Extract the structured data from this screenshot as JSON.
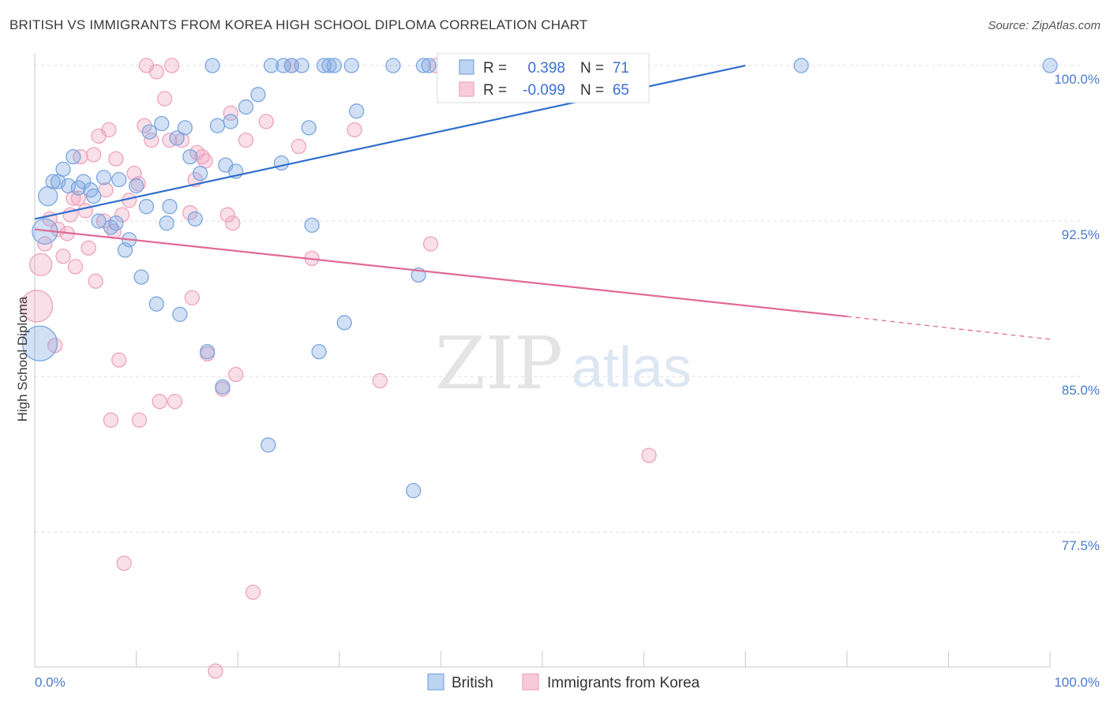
{
  "title": "BRITISH VS IMMIGRANTS FROM KOREA HIGH SCHOOL DIPLOMA CORRELATION CHART",
  "source": "Source: ZipAtlas.com",
  "watermark": {
    "zip": "ZIP",
    "atlas": "atlas"
  },
  "colors": {
    "british": "#7ba6e0",
    "british_line": "#2f6fcc",
    "korea": "#eea3bd",
    "korea_line": "#e06a96",
    "tick": "#4a7ccc",
    "grid": "#dddddd"
  },
  "chart_data": {
    "type": "scatter",
    "ylabel": "High School Diploma",
    "xlim": [
      0,
      100
    ],
    "ylim": [
      71.0,
      100.8
    ],
    "x_tick_labels": [
      {
        "value": 0,
        "label": "0.0%"
      },
      {
        "value": 100,
        "label": "100.0%"
      }
    ],
    "y_ticks": [
      {
        "value": 100.0,
        "label": "100.0%"
      },
      {
        "value": 92.5,
        "label": "92.5%"
      },
      {
        "value": 85.0,
        "label": "85.0%"
      },
      {
        "value": 77.5,
        "label": "77.5%"
      }
    ],
    "legend": [
      {
        "series": "British",
        "r_label": "R =",
        "r": "0.398",
        "n_label": "N =",
        "n": "71"
      },
      {
        "series": "Immigrants from Korea",
        "r_label": "R =",
        "r": "-0.099",
        "n_label": "N =",
        "n": "65"
      }
    ],
    "series": [
      {
        "name": "British",
        "trend": {
          "x": [
            0,
            70
          ],
          "y": [
            92.6,
            100.0
          ]
        },
        "points": [
          [
            0.5,
            86.6,
            22
          ],
          [
            1.0,
            92.0,
            16
          ],
          [
            1.3,
            93.7,
            12
          ],
          [
            1.8,
            94.4,
            9
          ],
          [
            2.3,
            94.4,
            9
          ],
          [
            2.8,
            95.0,
            9
          ],
          [
            3.3,
            94.2,
            9
          ],
          [
            3.8,
            95.6,
            9
          ],
          [
            4.3,
            94.1,
            9
          ],
          [
            4.8,
            94.4,
            9
          ],
          [
            5.5,
            94.0,
            9
          ],
          [
            5.8,
            93.7,
            9
          ],
          [
            6.3,
            92.5,
            9
          ],
          [
            6.8,
            94.6,
            9
          ],
          [
            7.5,
            92.2,
            9
          ],
          [
            8.0,
            92.4,
            9
          ],
          [
            8.3,
            94.5,
            9
          ],
          [
            8.9,
            91.1,
            9
          ],
          [
            9.3,
            91.6,
            9
          ],
          [
            10.0,
            94.2,
            9
          ],
          [
            10.5,
            89.8,
            9
          ],
          [
            11.0,
            93.2,
            9
          ],
          [
            11.3,
            96.8,
            9
          ],
          [
            12.0,
            88.5,
            9
          ],
          [
            12.5,
            97.2,
            9
          ],
          [
            13.0,
            92.4,
            9
          ],
          [
            13.3,
            93.2,
            9
          ],
          [
            14.0,
            96.5,
            9
          ],
          [
            14.3,
            88.0,
            9
          ],
          [
            14.8,
            97.0,
            9
          ],
          [
            15.3,
            95.6,
            9
          ],
          [
            15.8,
            92.6,
            9
          ],
          [
            16.3,
            94.8,
            9
          ],
          [
            17.0,
            86.2,
            9
          ],
          [
            17.5,
            100.0,
            9
          ],
          [
            18.0,
            97.1,
            9
          ],
          [
            18.5,
            84.5,
            9
          ],
          [
            18.8,
            95.2,
            9
          ],
          [
            19.3,
            97.3,
            9
          ],
          [
            19.8,
            94.9,
            9
          ],
          [
            20.8,
            98.0,
            9
          ],
          [
            22.0,
            98.6,
            9
          ],
          [
            23.0,
            81.7,
            9
          ],
          [
            23.3,
            100.0,
            9
          ],
          [
            24.3,
            95.3,
            9
          ],
          [
            24.5,
            100.0,
            9
          ],
          [
            25.3,
            100.0,
            9
          ],
          [
            26.3,
            100.0,
            9
          ],
          [
            27.0,
            97.0,
            9
          ],
          [
            27.3,
            92.3,
            9
          ],
          [
            28.0,
            86.2,
            9
          ],
          [
            28.5,
            100.0,
            9
          ],
          [
            29.0,
            100.0,
            9
          ],
          [
            29.5,
            100.0,
            9
          ],
          [
            30.5,
            87.6,
            9
          ],
          [
            31.2,
            100.0,
            9
          ],
          [
            31.7,
            97.8,
            9
          ],
          [
            35.3,
            100.0,
            9
          ],
          [
            37.3,
            79.5,
            9
          ],
          [
            37.8,
            89.9,
            9
          ],
          [
            38.3,
            100.0,
            9
          ],
          [
            38.8,
            100.0,
            9
          ],
          [
            41.5,
            100.0,
            9
          ],
          [
            43.3,
            100.0,
            9
          ],
          [
            45.3,
            100.0,
            9
          ],
          [
            47.3,
            100.0,
            9
          ],
          [
            52.0,
            100.0,
            9
          ],
          [
            56.3,
            100.0,
            9
          ],
          [
            75.5,
            100.0,
            9
          ],
          [
            100.0,
            100.0,
            9
          ],
          [
            48.0,
            100.0,
            9
          ]
        ]
      },
      {
        "name": "Immigrants from Korea",
        "trend": {
          "x": [
            0,
            80
          ],
          "y": [
            92.1,
            87.9
          ]
        },
        "trend_dashed": {
          "x": [
            80,
            100
          ],
          "y": [
            87.9,
            86.8
          ]
        },
        "points": [
          [
            0.2,
            88.4,
            20
          ],
          [
            0.6,
            90.4,
            14
          ],
          [
            1.0,
            91.4,
            9
          ],
          [
            1.5,
            92.6,
            9
          ],
          [
            2.0,
            86.5,
            9
          ],
          [
            2.3,
            92.1,
            9
          ],
          [
            2.8,
            90.8,
            9
          ],
          [
            3.2,
            91.9,
            9
          ],
          [
            3.5,
            92.8,
            9
          ],
          [
            3.8,
            93.6,
            9
          ],
          [
            4.0,
            90.3,
            9
          ],
          [
            4.3,
            93.6,
            9
          ],
          [
            4.5,
            95.6,
            9
          ],
          [
            5.3,
            91.2,
            9
          ],
          [
            5.8,
            95.7,
            9
          ],
          [
            6.0,
            89.6,
            9
          ],
          [
            6.3,
            96.6,
            9
          ],
          [
            6.8,
            92.5,
            9
          ],
          [
            7.0,
            94.0,
            9
          ],
          [
            7.3,
            96.9,
            9
          ],
          [
            7.5,
            82.9,
            9
          ],
          [
            7.8,
            92.0,
            9
          ],
          [
            8.0,
            95.5,
            9
          ],
          [
            8.3,
            85.8,
            9
          ],
          [
            8.6,
            92.8,
            9
          ],
          [
            8.8,
            76.0,
            9
          ],
          [
            9.3,
            93.5,
            9
          ],
          [
            9.8,
            94.8,
            9
          ],
          [
            10.2,
            94.3,
            9
          ],
          [
            10.3,
            82.9,
            9
          ],
          [
            11.0,
            100.0,
            9
          ],
          [
            11.5,
            96.4,
            9
          ],
          [
            12.0,
            99.7,
            9
          ],
          [
            12.3,
            83.8,
            9
          ],
          [
            12.8,
            98.4,
            9
          ],
          [
            13.3,
            96.4,
            9
          ],
          [
            13.5,
            100.0,
            9
          ],
          [
            13.8,
            83.8,
            9
          ],
          [
            14.5,
            96.4,
            9
          ],
          [
            15.3,
            92.9,
            9
          ],
          [
            15.5,
            88.8,
            9
          ],
          [
            15.8,
            94.5,
            9
          ],
          [
            16.0,
            95.8,
            9
          ],
          [
            16.5,
            95.6,
            9
          ],
          [
            16.8,
            95.4,
            9
          ],
          [
            17.0,
            86.1,
            9
          ],
          [
            17.8,
            70.8,
            9
          ],
          [
            18.5,
            84.4,
            9
          ],
          [
            19.0,
            92.8,
            9
          ],
          [
            19.3,
            97.7,
            9
          ],
          [
            19.5,
            92.4,
            9
          ],
          [
            19.8,
            85.1,
            9
          ],
          [
            20.8,
            96.4,
            9
          ],
          [
            21.5,
            74.6,
            9
          ],
          [
            25.3,
            100.0,
            9
          ],
          [
            26.0,
            96.1,
            9
          ],
          [
            27.3,
            90.7,
            9
          ],
          [
            31.5,
            96.9,
            9
          ],
          [
            34.0,
            84.8,
            9
          ],
          [
            39.0,
            91.4,
            9
          ],
          [
            39.5,
            100.0,
            9
          ],
          [
            60.5,
            81.2,
            9
          ],
          [
            22.8,
            97.3,
            9
          ],
          [
            10.8,
            97.1,
            9
          ],
          [
            5.0,
            93.0,
            9
          ]
        ]
      }
    ]
  }
}
